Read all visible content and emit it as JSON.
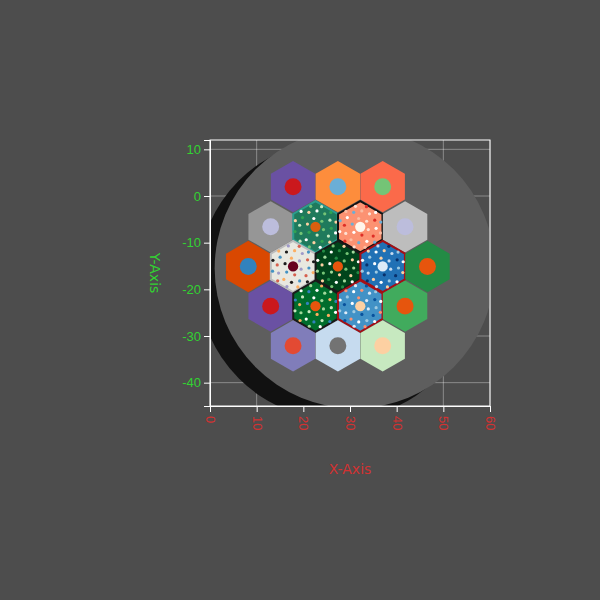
{
  "chart_data": {
    "type": "hexmap",
    "x_label": "X-Axis",
    "y_label": "Y-Axis",
    "xlim": [
      0,
      60
    ],
    "xticks": [
      0,
      10,
      20,
      30,
      40,
      50,
      60
    ],
    "ylim": [
      -45,
      12
    ],
    "yticks": [
      10,
      0,
      -10,
      -20,
      -30,
      -40
    ],
    "grid": true,
    "core": {
      "x": 31,
      "y": -15.5,
      "radius": 30,
      "color": "#5e5e5e"
    },
    "cell_radius": 5.5,
    "cells": [
      {
        "x": 17.8,
        "y": 2,
        "color": "#6a51a3",
        "dot_color": "#cb181d"
      },
      {
        "x": 27.4,
        "y": 2,
        "color": "#fd8d3c",
        "dot_color": "#6baed6"
      },
      {
        "x": 37,
        "y": 2,
        "color": "#fb6a4a",
        "dot_color": "#74c476"
      },
      {
        "x": 13,
        "y": -6.6,
        "color": "#969696",
        "dot_color": "#bcbddc"
      },
      {
        "x": 22.6,
        "y": -6.6,
        "color": "#1f7a5c",
        "dot_color": "#d95f0e",
        "edge_color": "#2a9d8f",
        "pin_colors": [
          "#74c476",
          "#c7e9c0",
          "#31a354",
          "#fdd0a2",
          "#ffffff"
        ]
      },
      {
        "x": 32.2,
        "y": -6.6,
        "color": "#fc9272",
        "dot_color": "#fff5eb",
        "edge_color": "#111111",
        "pin_colors": [
          "#fee0d2",
          "#de2d26",
          "#ffffff",
          "#6baed6",
          "#fcbba1"
        ]
      },
      {
        "x": 41.8,
        "y": -6.6,
        "color": "#bdbdbd",
        "dot_color": "#bcbddc"
      },
      {
        "x": 8.2,
        "y": -15.1,
        "color": "#d94801",
        "dot_color": "#3182bd"
      },
      {
        "x": 17.8,
        "y": -15.1,
        "color": "#e8e8e0",
        "dot_color": "#67001f",
        "edge_color": "#bdbdbd",
        "pin_colors": [
          "#9e9ac8",
          "#d6604d",
          "#4393c3",
          "#1a1a1a",
          "#fdae61"
        ]
      },
      {
        "x": 27.4,
        "y": -15.1,
        "color": "#00441b",
        "dot_color": "#e6550d",
        "edge_color": "#1a1a1a",
        "pin_colors": [
          "#74c476",
          "#fdd0a2",
          "#a1d99b",
          "#ffffff",
          "#238b45"
        ]
      },
      {
        "x": 37,
        "y": -15.1,
        "color": "#2171b5",
        "dot_color": "#deebf7",
        "edge_color": "#a50f15",
        "pin_colors": [
          "#c6dbef",
          "#08306b",
          "#9ecae1",
          "#ffffff",
          "#fdd0a2"
        ]
      },
      {
        "x": 46.6,
        "y": -15.1,
        "color": "#238b45",
        "dot_color": "#e6550d"
      },
      {
        "x": 13,
        "y": -23.6,
        "color": "#6a51a3",
        "dot_color": "#cb181d"
      },
      {
        "x": 22.6,
        "y": -23.6,
        "color": "#006d2c",
        "dot_color": "#e6550d",
        "edge_color": "#1a1a1a",
        "pin_colors": [
          "#a1d99b",
          "#fdae61",
          "#c7e9c0",
          "#3182bd",
          "#ffffff"
        ]
      },
      {
        "x": 32.2,
        "y": -23.6,
        "color": "#4292c6",
        "dot_color": "#fdd0a2",
        "edge_color": "#a50f15",
        "pin_colors": [
          "#deebf7",
          "#08519c",
          "#9ecae1",
          "#ffffff",
          "#fc9272"
        ]
      },
      {
        "x": 41.8,
        "y": -23.6,
        "color": "#41ab5d",
        "dot_color": "#e6550d"
      },
      {
        "x": 17.8,
        "y": -32.1,
        "color": "#807dba",
        "dot_color": "#e34a33"
      },
      {
        "x": 27.4,
        "y": -32.1,
        "color": "#c6dbef",
        "dot_color": "#737373"
      },
      {
        "x": 37,
        "y": -32.1,
        "color": "#c7e9c0",
        "dot_color": "#fdd0a2"
      }
    ]
  }
}
